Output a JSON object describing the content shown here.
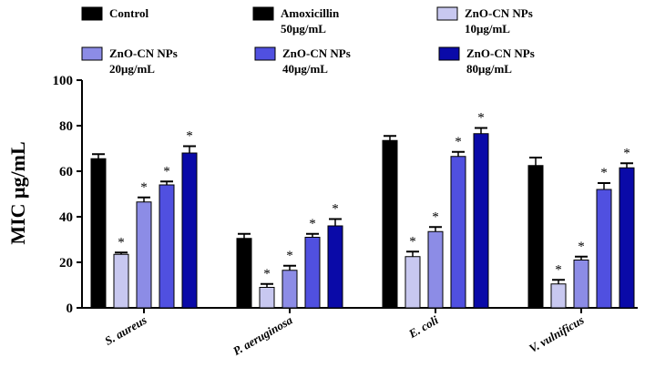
{
  "chart_data": {
    "type": "bar",
    "ylabel": "MIC μg/mL",
    "xlabel": "",
    "title": "",
    "ylim": [
      0,
      100
    ],
    "yticks": [
      0,
      20,
      40,
      60,
      80,
      100
    ],
    "categories": [
      "S. aureus",
      "P. aeruginosa",
      "E. coli",
      "V. vulnificus"
    ],
    "series": [
      {
        "name": "Control",
        "color": "#000000",
        "values": [
          65.5,
          30.5,
          73.5,
          62.5
        ],
        "errors": [
          2,
          2,
          2,
          3.5
        ],
        "significant": [
          false,
          false,
          false,
          false
        ]
      },
      {
        "name": "Amoxicillin 50μg/mL",
        "color": "#000000",
        "values": [
          null,
          null,
          null,
          null
        ],
        "errors": [
          null,
          null,
          null,
          null
        ],
        "significant": [
          false,
          false,
          false,
          false
        ]
      },
      {
        "name": "ZnO-CN NPs 10μg/mL",
        "color": "#c8c8f0",
        "values": [
          23.5,
          9,
          22.5,
          10.5
        ],
        "errors": [
          0.8,
          1.5,
          2.2,
          1.8
        ],
        "significant": [
          true,
          true,
          true,
          true
        ]
      },
      {
        "name": "ZnO-CN NPs 20μg/mL",
        "color": "#8c8ce6",
        "values": [
          46.5,
          16.5,
          33.5,
          21
        ],
        "errors": [
          2,
          2,
          2,
          1.5
        ],
        "significant": [
          true,
          true,
          true,
          true
        ]
      },
      {
        "name": "ZnO-CN NPs 40μg/mL",
        "color": "#5050e0",
        "values": [
          54,
          31,
          66.5,
          52
        ],
        "errors": [
          1.5,
          1.5,
          2,
          2.8
        ],
        "significant": [
          true,
          true,
          true,
          true
        ]
      },
      {
        "name": "ZnO-CN NPs 80μg/mL",
        "color": "#0a0aa8",
        "values": [
          68,
          36,
          76.5,
          61.5
        ],
        "errors": [
          3,
          3,
          2.5,
          2
        ],
        "significant": [
          true,
          true,
          true,
          true
        ]
      }
    ],
    "legend": {
      "placement": "top",
      "entries": [
        {
          "line1": "Control",
          "line2": "",
          "color": "#000000"
        },
        {
          "line1": "Amoxicillin",
          "line2": "50μg/mL",
          "color": "#000000"
        },
        {
          "line1": "ZnO-CN NPs",
          "line2": "10μg/mL",
          "color": "#c8c8f0"
        },
        {
          "line1": "ZnO-CN NPs",
          "line2": "20μg/mL",
          "color": "#8c8ce6"
        },
        {
          "line1": "ZnO-CN NPs",
          "line2": "40μg/mL",
          "color": "#5050e0"
        },
        {
          "line1": "ZnO-CN NPs",
          "line2": "80μg/mL",
          "color": "#0a0aa8"
        }
      ]
    },
    "significance_marker": "*"
  }
}
